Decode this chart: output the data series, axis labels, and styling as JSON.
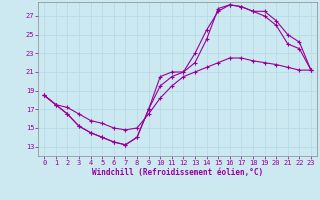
{
  "xlabel": "Windchill (Refroidissement éolien,°C)",
  "xlim": [
    -0.5,
    23.5
  ],
  "ylim": [
    12.0,
    28.5
  ],
  "xticks": [
    0,
    1,
    2,
    3,
    4,
    5,
    6,
    7,
    8,
    9,
    10,
    11,
    12,
    13,
    14,
    15,
    16,
    17,
    18,
    19,
    20,
    21,
    22,
    23
  ],
  "yticks": [
    13,
    15,
    17,
    19,
    21,
    23,
    25,
    27
  ],
  "bg_color": "#cce8f0",
  "line_color": "#990099",
  "grid_color": "#b8dce8",
  "curves": [
    {
      "x": [
        0,
        1,
        2,
        3,
        4,
        5,
        6,
        7,
        8,
        9,
        10,
        11,
        12,
        13,
        14,
        15,
        16,
        17,
        18,
        19,
        20,
        21,
        22,
        23
      ],
      "y": [
        18.5,
        17.5,
        16.5,
        15.2,
        14.5,
        14.0,
        13.5,
        13.2,
        14.0,
        17.0,
        20.5,
        21.0,
        21.0,
        23.0,
        25.5,
        27.5,
        28.2,
        28.0,
        27.5,
        27.0,
        26.0,
        24.0,
        23.5,
        21.2
      ]
    },
    {
      "x": [
        0,
        1,
        2,
        3,
        4,
        5,
        6,
        7,
        8,
        9,
        10,
        11,
        12,
        13,
        14,
        15,
        16,
        17,
        18,
        19,
        20,
        21,
        22,
        23
      ],
      "y": [
        18.5,
        17.5,
        16.5,
        15.2,
        14.5,
        14.0,
        13.5,
        13.2,
        14.0,
        17.0,
        19.5,
        20.5,
        21.0,
        22.0,
        24.5,
        27.8,
        28.2,
        28.0,
        27.5,
        27.5,
        26.5,
        25.0,
        24.2,
        21.2
      ]
    },
    {
      "x": [
        0,
        1,
        2,
        3,
        4,
        5,
        6,
        7,
        8,
        9,
        10,
        11,
        12,
        13,
        14,
        15,
        16,
        17,
        18,
        19,
        20,
        21,
        22,
        23
      ],
      "y": [
        18.5,
        17.5,
        17.2,
        16.5,
        15.8,
        15.5,
        15.0,
        14.8,
        15.0,
        16.5,
        18.2,
        19.5,
        20.5,
        21.0,
        21.5,
        22.0,
        22.5,
        22.5,
        22.2,
        22.0,
        21.8,
        21.5,
        21.2,
        21.2
      ]
    }
  ]
}
